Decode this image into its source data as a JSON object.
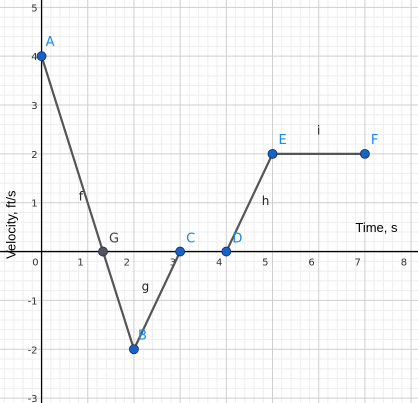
{
  "chart_data": {
    "type": "line",
    "xlabel": "Time, s",
    "ylabel": "Velocity, ft/s",
    "xlim": [
      -0.9,
      8
    ],
    "ylim": [
      -3,
      5.1
    ],
    "grid": true,
    "x_ticks": [
      0,
      1,
      2,
      3,
      4,
      5,
      6,
      7,
      8
    ],
    "x_tick_labels": [
      "0",
      "1",
      "2",
      "3",
      "4",
      "5",
      "6",
      "7",
      "8"
    ],
    "y_ticks": [
      -3,
      -2,
      -1,
      1,
      2,
      3,
      4,
      5
    ],
    "y_tick_labels": [
      "-3",
      "-2",
      "-1",
      "1",
      "2",
      "3",
      "4",
      "5"
    ],
    "points": [
      {
        "label": "A",
        "x": 0,
        "y": 4,
        "color": "#1565c0"
      },
      {
        "label": "G",
        "x": 1.33,
        "y": 0,
        "color": "#555555"
      },
      {
        "label": "B",
        "x": 2,
        "y": -2,
        "color": "#1565c0"
      },
      {
        "label": "C",
        "x": 3,
        "y": 0,
        "color": "#1565c0"
      },
      {
        "label": "D",
        "x": 4,
        "y": 0,
        "color": "#1565c0"
      },
      {
        "label": "E",
        "x": 5,
        "y": 2,
        "color": "#1565c0"
      },
      {
        "label": "F",
        "x": 7,
        "y": 2,
        "color": "#1565c0"
      }
    ],
    "segments": [
      {
        "label": "f",
        "from": "A",
        "to": "G",
        "label_at": [
          0.85,
          1.05
        ]
      },
      {
        "label": "",
        "from": "G",
        "to": "B",
        "label_at": null
      },
      {
        "label": "g",
        "from": "B",
        "to": "C",
        "label_at": [
          2.25,
          -0.8
        ]
      },
      {
        "label": "h",
        "from": "D",
        "to": "E",
        "label_at": [
          4.85,
          0.95
        ]
      },
      {
        "label": "i",
        "from": "E",
        "to": "F",
        "label_at": [
          6.0,
          2.4
        ]
      }
    ],
    "colors": {
      "line": "#555555",
      "point": "#1565c0",
      "point_label": "#1e88e5",
      "axis": "#000000",
      "grid_major": "#cfcfcf",
      "grid_minor": "#eeeeee"
    }
  }
}
